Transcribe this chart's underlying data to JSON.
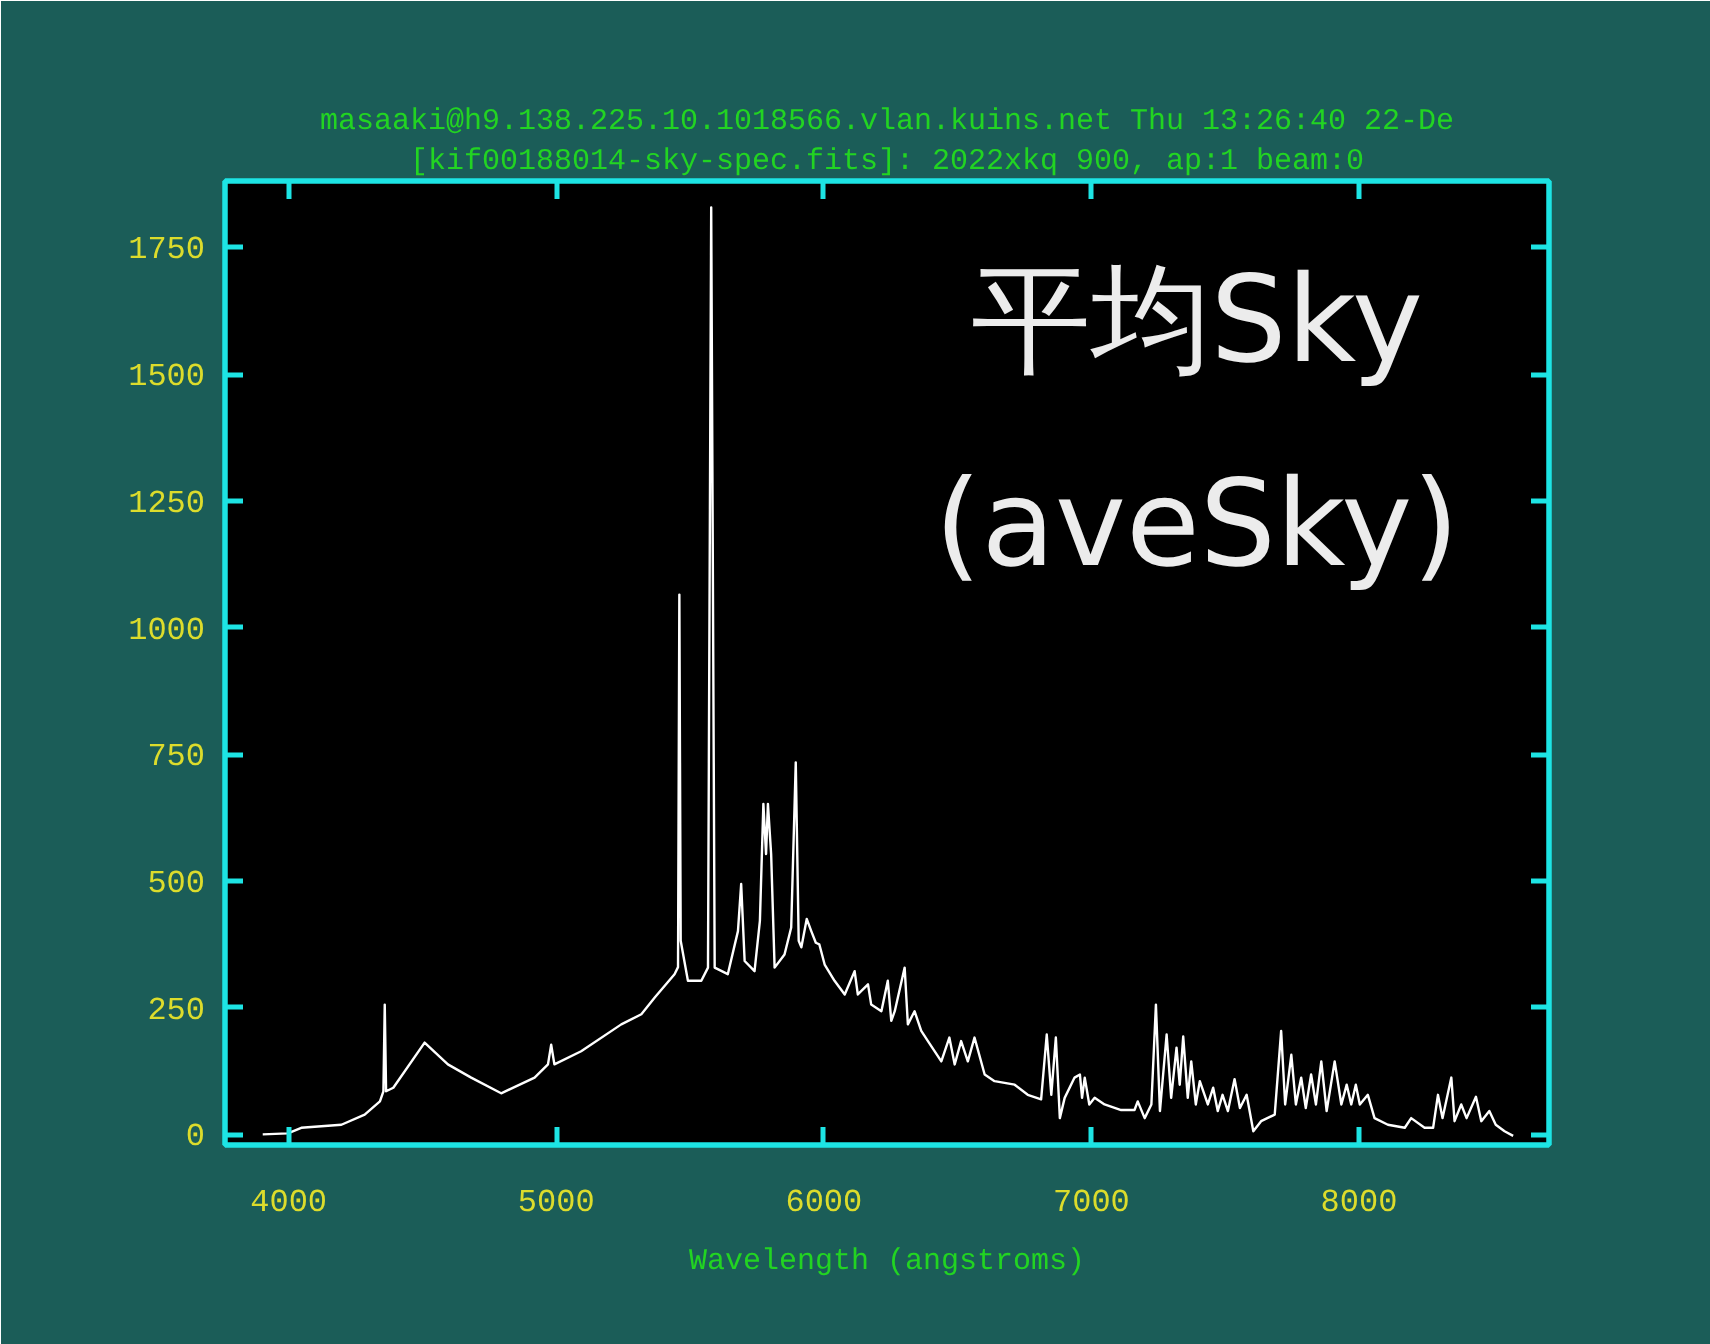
{
  "chart_data": {
    "type": "line",
    "title": "masaaki@h9.138.225.10.1018566.vlan.kuins.net Thu 13:26:40 22-De",
    "subtitle": "[kif00188014-sky-spec.fits]: 2022xkq 900, ap:1 beam:0",
    "xlabel": "Wavelength (angstroms)",
    "annotations": [
      "平均Sky",
      "(aveSky)"
    ],
    "x": [
      3903,
      3997,
      4047,
      4197,
      4284,
      4341,
      4354,
      4359,
      4364,
      4391,
      4508,
      4595,
      4682,
      4794,
      4919,
      4969,
      4981,
      4993,
      5093,
      5243,
      5318,
      5368,
      5442,
      5455,
      5460,
      5465,
      5492,
      5542,
      5567,
      5579,
      5592,
      5641,
      5679,
      5691,
      5704,
      5741,
      5761,
      5774,
      5784,
      5791,
      5803,
      5816,
      5853,
      5878,
      5895,
      5906,
      5916,
      5936,
      5953,
      5970,
      5983,
      6003,
      6040,
      6078,
      6115,
      6127,
      6165,
      6177,
      6215,
      6239,
      6252,
      6265,
      6302,
      6314,
      6339,
      6364,
      6389,
      6439,
      6469,
      6489,
      6513,
      6538,
      6563,
      6601,
      6638,
      6713,
      6762,
      6812,
      6833,
      6850,
      6867,
      6882,
      6900,
      6937,
      6957,
      6965,
      6975,
      6992,
      7012,
      7049,
      7111,
      7161,
      7173,
      7199,
      7224,
      7241,
      7256,
      7281,
      7298,
      7318,
      7330,
      7343,
      7360,
      7373,
      7390,
      7405,
      7435,
      7455,
      7472,
      7490,
      7510,
      7535,
      7555,
      7580,
      7605,
      7634,
      7685,
      7709,
      7724,
      7747,
      7764,
      7784,
      7801,
      7821,
      7839,
      7859,
      7879,
      7909,
      7934,
      7954,
      7971,
      7988,
      8003,
      8033,
      8058,
      8108,
      8171,
      8195,
      8245,
      8277,
      8295,
      8312,
      8345,
      8357,
      8382,
      8402,
      8437,
      8457,
      8487,
      8511,
      8544,
      8576
    ],
    "series": [
      {
        "color": "#ffffff",
        "values": [
          0,
          2,
          13,
          19,
          39,
          65,
          85,
          256,
          85,
          92,
          181,
          138,
          112,
          81,
          112,
          138,
          177,
          138,
          164,
          217,
          237,
          270,
          316,
          330,
          1065,
          382,
          303,
          303,
          329,
          1829,
          329,
          316,
          401,
          494,
          342,
          322,
          421,
          652,
          553,
          652,
          553,
          329,
          355,
          408,
          734,
          382,
          369,
          425,
          401,
          378,
          375,
          335,
          303,
          276,
          322,
          276,
          296,
          256,
          243,
          303,
          224,
          243,
          329,
          217,
          243,
          204,
          184,
          144,
          191,
          138,
          184,
          144,
          191,
          118,
          105,
          98,
          78,
          69,
          197,
          78,
          191,
          32,
          72,
          112,
          118,
          72,
          112,
          59,
          72,
          59,
          48,
          48,
          65,
          32,
          59,
          256,
          46,
          197,
          72,
          171,
          98,
          193,
          72,
          144,
          59,
          105,
          59,
          92,
          46,
          78,
          46,
          109,
          52,
          78,
          6,
          26,
          39,
          204,
          59,
          157,
          59,
          112,
          52,
          118,
          59,
          144,
          46,
          144,
          59,
          98,
          59,
          98,
          59,
          78,
          32,
          19,
          13,
          32,
          13,
          13,
          78,
          32,
          112,
          26,
          59,
          32,
          74,
          26,
          46,
          19,
          6,
          -3
        ]
      }
    ],
    "xlim": [
      3762,
      8710
    ],
    "ylim": [
      -21,
      1881
    ],
    "xticks": [
      4000,
      5000,
      6000,
      7000,
      8000
    ],
    "yticks": [
      0,
      250,
      500,
      750,
      1000,
      1250,
      1500,
      1750
    ]
  }
}
